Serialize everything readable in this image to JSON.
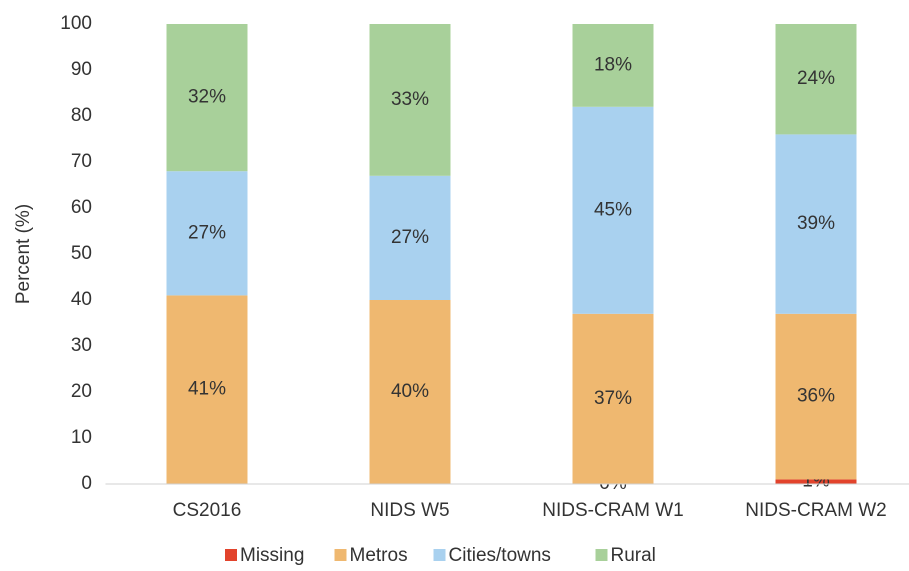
{
  "chart_data": {
    "type": "stacked_bar",
    "y_label": "Percent (%)",
    "categories": [
      "CS2016",
      "NIDS W5",
      "NIDS-CRAM W1",
      "NIDS-CRAM W2"
    ],
    "series": [
      {
        "name": "Missing",
        "color": "#e2432c",
        "values": [
          0,
          0,
          0,
          1
        ],
        "value_labels": [
          null,
          null,
          "0%",
          "1%"
        ]
      },
      {
        "name": "Metros",
        "color": "#efb870",
        "values": [
          41,
          40,
          37,
          36
        ],
        "value_labels": [
          "41%",
          "40%",
          "37%",
          "36%"
        ]
      },
      {
        "name": "Cities/towns",
        "color": "#a9d1ef",
        "values": [
          27,
          27,
          45,
          39
        ],
        "value_labels": [
          "27%",
          "27%",
          "45%",
          "39%"
        ]
      },
      {
        "name": "Rural",
        "color": "#a8d09a",
        "values": [
          32,
          33,
          18,
          24
        ],
        "value_labels": [
          "32%",
          "33%",
          "18%",
          "24%"
        ]
      }
    ],
    "ylim": [
      0,
      100
    ],
    "yticks": [
      0,
      10,
      20,
      30,
      40,
      50,
      60,
      70,
      80,
      90,
      100
    ],
    "grid": false,
    "legend": "bottom"
  }
}
